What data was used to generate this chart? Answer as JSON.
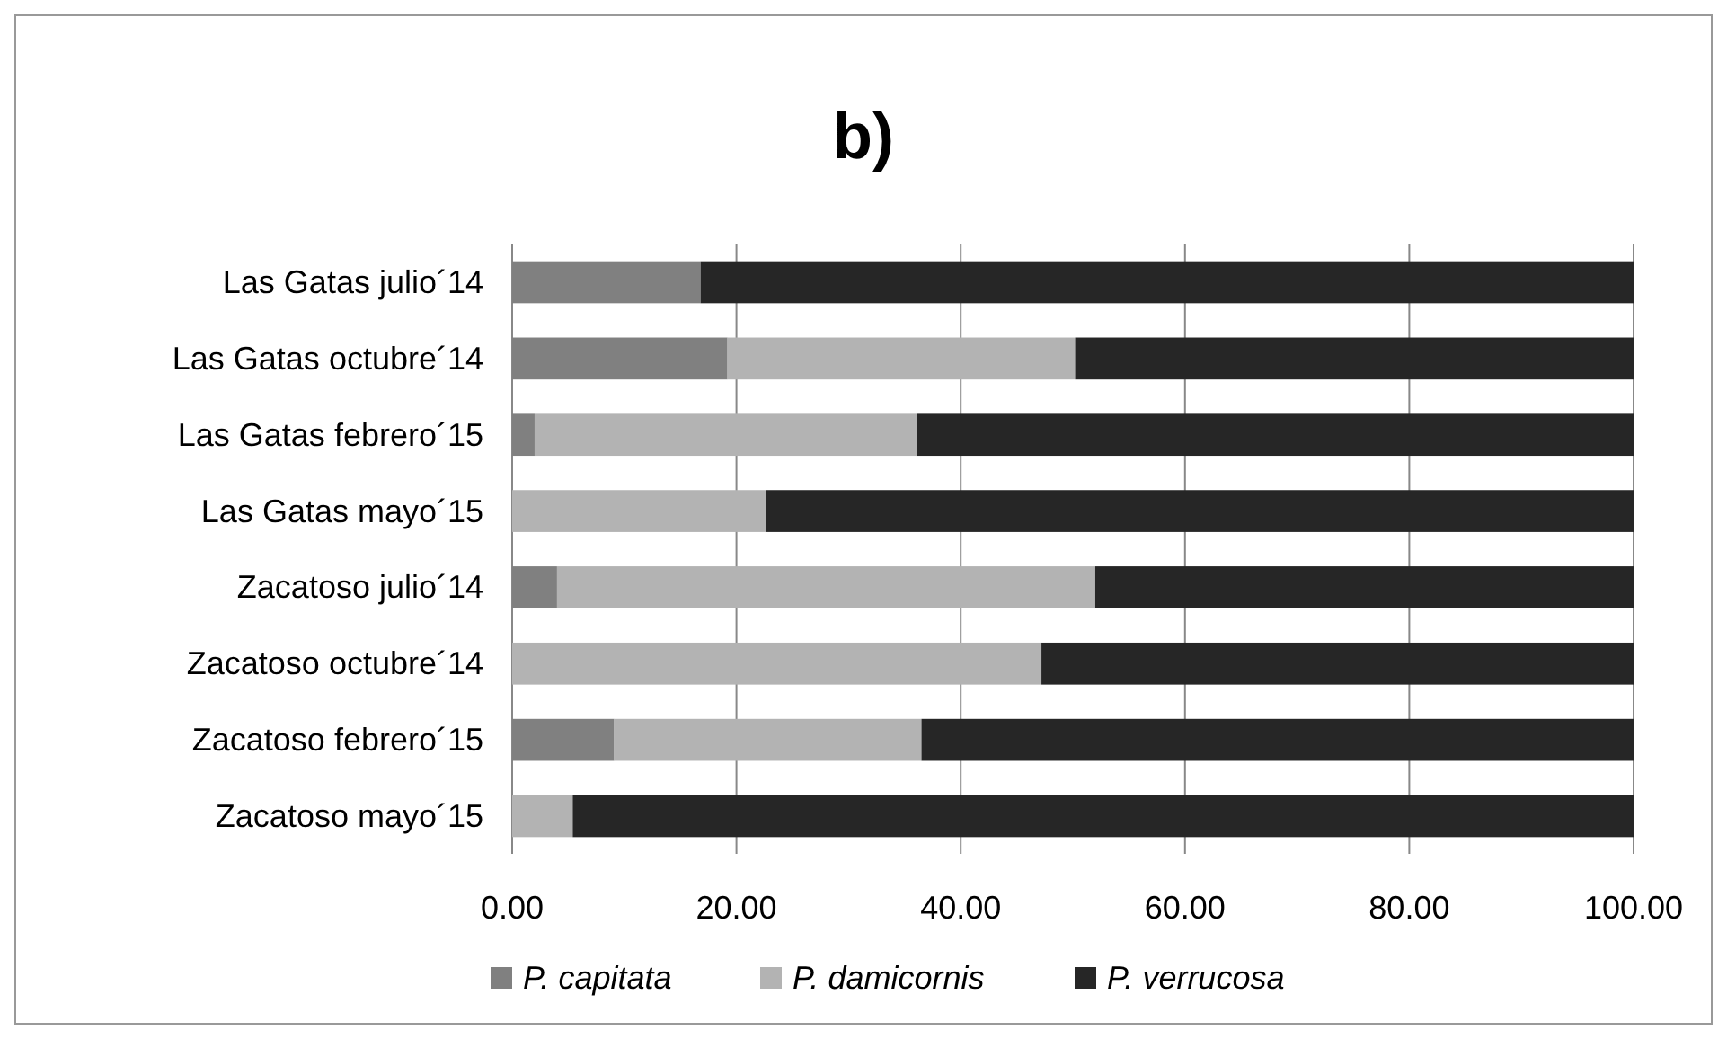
{
  "chart_data": {
    "type": "bar",
    "title": "b)",
    "orientation": "horizontal",
    "stacked": true,
    "categories": [
      "Las Gatas julio´14",
      "Las Gatas octubre´14",
      "Las Gatas febrero´15",
      "Las Gatas mayo´15",
      "Zacatoso julio´14",
      "Zacatoso octubre´14",
      "Zacatoso febrero´15",
      "Zacatoso mayo´15"
    ],
    "series": [
      {
        "name": "P. capitata",
        "color": "#808080",
        "values": [
          16.8,
          19.2,
          2.0,
          0,
          4.0,
          0,
          9.1,
          0
        ]
      },
      {
        "name": "P. damicornis",
        "color": "#b3b3b3",
        "values": [
          0,
          31.0,
          34.1,
          22.6,
          48.0,
          47.2,
          27.4,
          5.4
        ]
      },
      {
        "name": "P. verrucosa",
        "color": "#262626",
        "values": [
          83.2,
          49.8,
          63.9,
          77.4,
          48.0,
          52.8,
          63.5,
          94.6
        ]
      }
    ],
    "xlim": [
      0,
      100
    ],
    "xticks": [
      {
        "value": 0,
        "label": "0.00"
      },
      {
        "value": 20,
        "label": "20.00"
      },
      {
        "value": 40,
        "label": "40.00"
      },
      {
        "value": 60,
        "label": "60.00"
      },
      {
        "value": 80,
        "label": "80.00"
      },
      {
        "value": 100,
        "label": "100.00"
      }
    ],
    "grid": "x",
    "legend": "bottom"
  }
}
